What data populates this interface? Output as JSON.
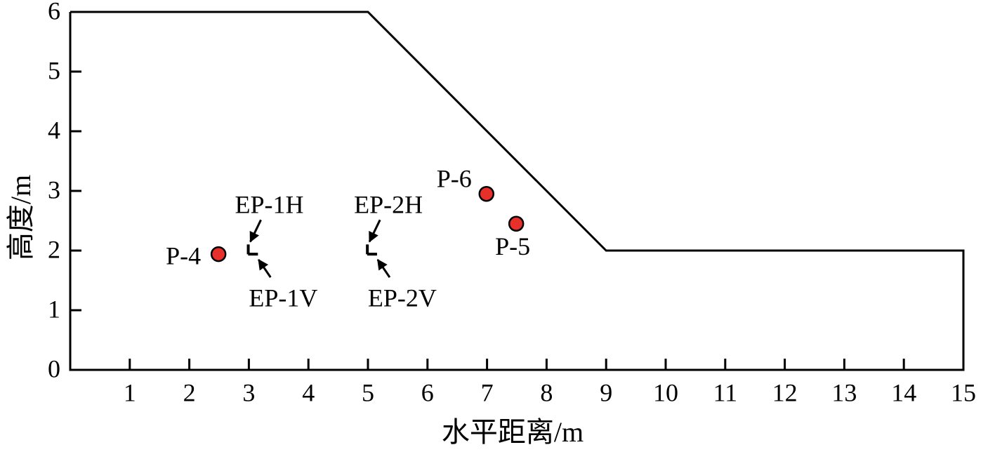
{
  "chart_data": {
    "type": "scatter",
    "xlabel": "水平距离/m",
    "ylabel": "高度/m",
    "xlim": [
      0,
      15
    ],
    "ylim": [
      0,
      6
    ],
    "xticks": [
      1,
      2,
      3,
      4,
      5,
      6,
      7,
      8,
      9,
      10,
      11,
      12,
      13,
      14,
      15
    ],
    "yticks": [
      0,
      1,
      2,
      3,
      4,
      5,
      6
    ],
    "slope": {
      "x": [
        0,
        5,
        9,
        15,
        15
      ],
      "y": [
        6,
        6,
        2,
        2,
        0
      ],
      "color": "#000000"
    },
    "points": [
      {
        "label": "P-4",
        "x": 2.49,
        "y": 1.94,
        "color": "#e8302a"
      },
      {
        "label": "P-6",
        "x": 6.99,
        "y": 2.95,
        "color": "#e8302a"
      },
      {
        "label": "P-5",
        "x": 7.49,
        "y": 2.45,
        "color": "#e8302a"
      }
    ],
    "gauges": [
      {
        "label": "EP-1H",
        "x": 2.99,
        "y": 2.02
      },
      {
        "label": "EP-1V",
        "x": 3.07,
        "y": 1.94
      },
      {
        "label": "EP-2H",
        "x": 4.99,
        "y": 2.02
      },
      {
        "label": "EP-2V",
        "x": 5.07,
        "y": 1.94
      }
    ]
  }
}
